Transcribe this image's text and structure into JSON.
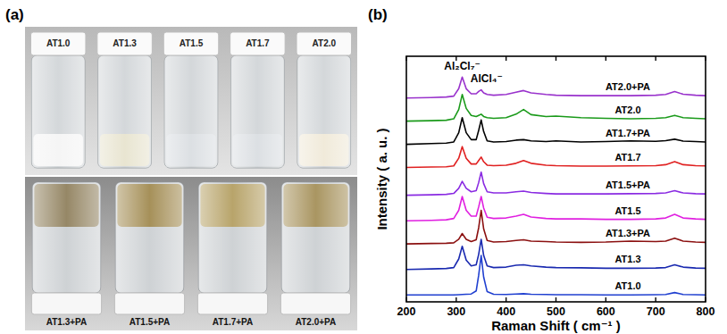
{
  "photo": {
    "label": "(a)",
    "top_row": [
      "AT1.0",
      "AT1.3",
      "AT1.5",
      "AT1.7",
      "AT2.0"
    ],
    "bottom_row": [
      "AT1.3+PA",
      "AT1.5+PA",
      "AT1.7+PA",
      "AT2.0+PA"
    ]
  },
  "chart_data": {
    "type": "line",
    "title": "(b)",
    "x_label": "Raman Shift ( cm⁻¹ )",
    "y_label": "Intensity ( a. u. )",
    "xlim": [
      200,
      800
    ],
    "xticks": [
      200,
      300,
      400,
      500,
      600,
      700,
      800
    ],
    "ylim": [
      0,
      10.6
    ],
    "tick_labels": "x",
    "grid": false,
    "annotations": [
      {
        "text": "Al₂Cl₇⁻",
        "x": 312
      },
      {
        "text": "AlCl₄⁻",
        "x": 350
      }
    ],
    "x": [
      200,
      250,
      280,
      295,
      305,
      312,
      320,
      330,
      340,
      345,
      350,
      355,
      362,
      375,
      400,
      420,
      435,
      450,
      480,
      500,
      550,
      600,
      650,
      700,
      720,
      738,
      755,
      780,
      800
    ],
    "series": [
      {
        "name": "AT1.0",
        "color": "#2040d0",
        "values": [
          0.3,
          0.3,
          0.3,
          0.3,
          0.31,
          0.32,
          0.33,
          0.34,
          0.47,
          1.15,
          2.0,
          1.07,
          0.44,
          0.33,
          0.32,
          0.34,
          0.35,
          0.33,
          0.32,
          0.31,
          0.31,
          0.3,
          0.3,
          0.31,
          0.32,
          0.4,
          0.32,
          0.31,
          0.3
        ]
      },
      {
        "name": "AT1.3",
        "color": "#1a2ab0",
        "values": [
          1.4,
          1.42,
          1.44,
          1.48,
          1.85,
          2.4,
          1.8,
          1.55,
          1.6,
          2.05,
          2.7,
          2.0,
          1.55,
          1.48,
          1.5,
          1.58,
          1.6,
          1.55,
          1.5,
          1.48,
          1.47,
          1.45,
          1.45,
          1.46,
          1.48,
          1.6,
          1.5,
          1.46,
          1.45
        ]
      },
      {
        "name": "AT1.3+PA",
        "color": "#8b1010",
        "values": [
          2.5,
          2.52,
          2.53,
          2.55,
          2.7,
          2.95,
          2.7,
          2.6,
          2.68,
          3.2,
          3.95,
          3.15,
          2.65,
          2.58,
          2.6,
          2.65,
          2.68,
          2.62,
          2.6,
          2.58,
          2.57,
          2.58,
          2.62,
          2.6,
          2.62,
          2.75,
          2.62,
          2.58,
          2.57
        ]
      },
      {
        "name": "AT1.5",
        "color": "#e020e0",
        "values": [
          3.5,
          3.52,
          3.54,
          3.6,
          3.95,
          4.55,
          3.95,
          3.7,
          3.7,
          4.1,
          4.55,
          4.05,
          3.65,
          3.6,
          3.62,
          3.7,
          3.78,
          3.66,
          3.6,
          3.58,
          3.58,
          3.56,
          3.56,
          3.58,
          3.62,
          3.78,
          3.62,
          3.58,
          3.56
        ]
      },
      {
        "name": "AT1.5+PA",
        "color": "#8a2be2",
        "values": [
          4.6,
          4.62,
          4.64,
          4.68,
          4.9,
          5.2,
          4.9,
          4.75,
          4.8,
          5.15,
          5.6,
          5.1,
          4.75,
          4.7,
          4.7,
          4.75,
          4.78,
          4.72,
          4.68,
          4.66,
          4.66,
          4.66,
          4.67,
          4.68,
          4.7,
          4.8,
          4.7,
          4.67,
          4.66
        ]
      },
      {
        "name": "AT1.7",
        "color": "#e02020",
        "values": [
          5.8,
          5.82,
          5.83,
          5.87,
          6.2,
          6.7,
          6.2,
          5.95,
          5.95,
          6.1,
          6.25,
          6.05,
          5.9,
          5.88,
          5.9,
          5.98,
          6.1,
          5.98,
          5.9,
          5.88,
          5.86,
          5.86,
          5.87,
          5.88,
          5.92,
          6.05,
          5.92,
          5.88,
          5.87
        ]
      },
      {
        "name": "AT1.7+PA",
        "color": "#000000",
        "values": [
          6.8,
          6.83,
          6.85,
          6.9,
          7.3,
          7.95,
          7.3,
          7.0,
          7.0,
          7.4,
          7.85,
          7.35,
          6.95,
          6.9,
          6.92,
          6.98,
          7.0,
          6.95,
          6.92,
          6.95,
          6.9,
          6.92,
          6.95,
          6.93,
          6.96,
          7.02,
          6.94,
          6.92,
          6.9
        ]
      },
      {
        "name": "AT2.0",
        "color": "#1a9a1a",
        "values": [
          7.8,
          7.82,
          7.84,
          7.9,
          8.3,
          8.95,
          8.35,
          8.05,
          8.0,
          8.05,
          8.1,
          8.0,
          7.95,
          7.92,
          7.95,
          8.1,
          8.3,
          8.08,
          8.0,
          8.02,
          7.95,
          7.92,
          7.9,
          7.92,
          7.95,
          8.05,
          7.95,
          7.92,
          7.9
        ]
      },
      {
        "name": "AT2.0+PA",
        "color": "#9932cc",
        "values": [
          8.8,
          8.82,
          8.84,
          8.88,
          9.2,
          9.7,
          9.2,
          8.98,
          8.98,
          9.08,
          9.15,
          9.02,
          8.95,
          8.92,
          8.95,
          9.05,
          9.12,
          9.02,
          8.95,
          8.92,
          8.9,
          8.9,
          8.9,
          8.92,
          8.95,
          9.08,
          8.96,
          8.92,
          8.9
        ]
      }
    ]
  }
}
